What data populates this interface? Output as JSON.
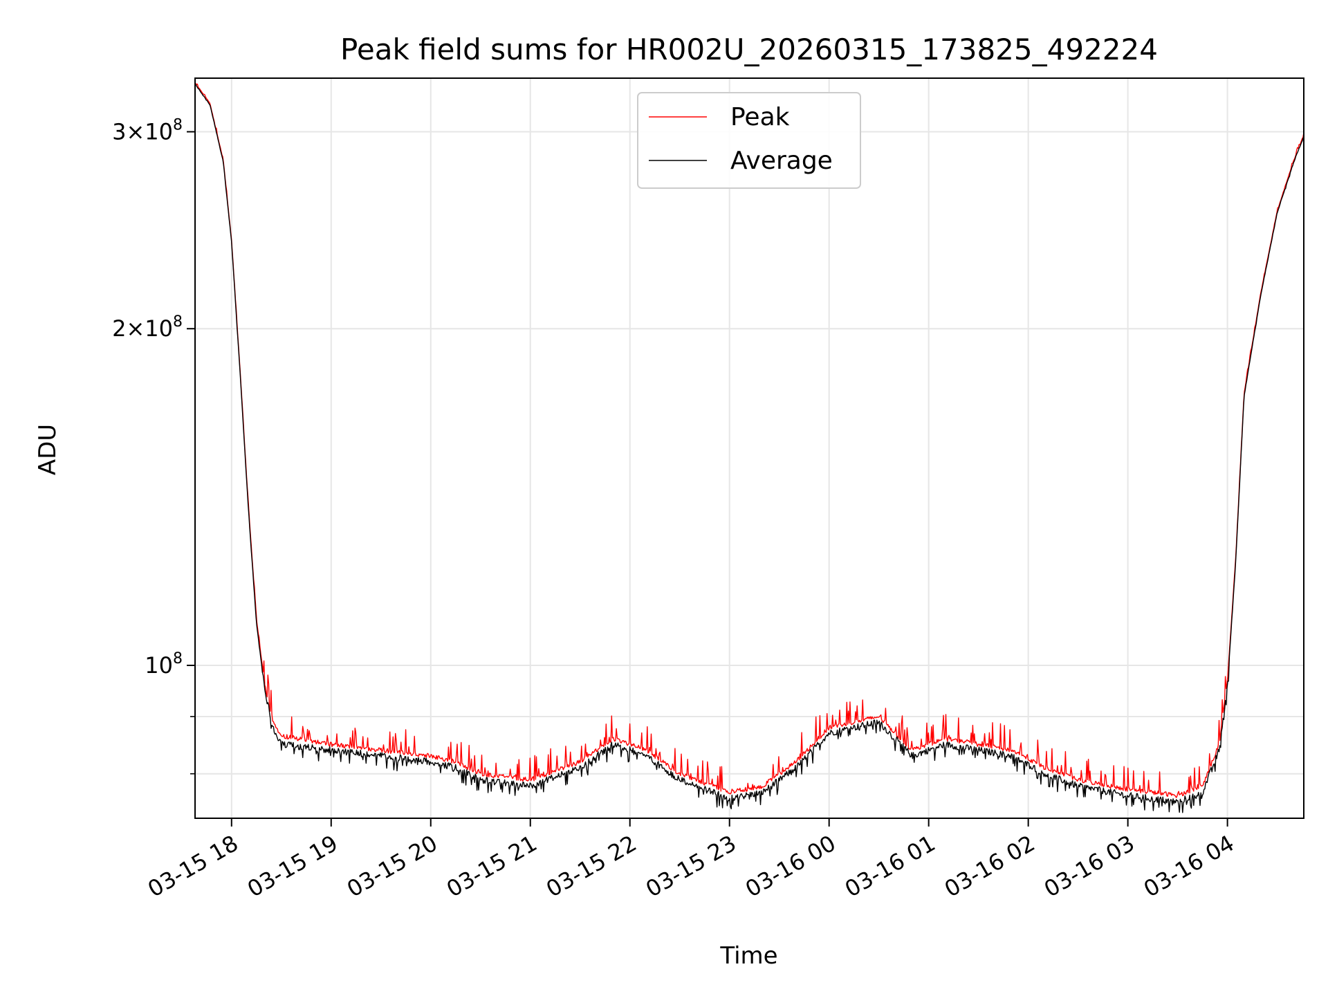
{
  "chart_data": {
    "type": "line",
    "title": "Peak field sums for HR002U_20260315_173825_492224",
    "xlabel": "Time",
    "ylabel": "ADU",
    "xlim": [
      "2026-03-15 17:38",
      "2026-03-16 04:46"
    ],
    "ylim": [
      73000000,
      335000000
    ],
    "yscale": "log",
    "grid": true,
    "legend_position": "top-center",
    "x_ticks": [
      "03-15 18",
      "03-15 19",
      "03-15 20",
      "03-15 21",
      "03-15 22",
      "03-15 23",
      "03-16 00",
      "03-16 01",
      "03-16 02",
      "03-16 03",
      "03-16 04"
    ],
    "y_ticks": [
      {
        "value": 100000000,
        "base": "10",
        "exp": "8",
        "coef": ""
      },
      {
        "value": 200000000,
        "base": "10",
        "exp": "8",
        "coef": "2"
      },
      {
        "value": 300000000,
        "base": "10",
        "exp": "8",
        "coef": "3"
      }
    ],
    "y_minor_ticks": [
      80000000,
      90000000
    ],
    "x": [
      "2026-03-15 17:38",
      "2026-03-15 17:47",
      "2026-03-15 17:55",
      "2026-03-15 18:00",
      "2026-03-15 18:05",
      "2026-03-15 18:10",
      "2026-03-15 18:15",
      "2026-03-15 18:20",
      "2026-03-15 18:25",
      "2026-03-15 18:30",
      "2026-03-15 19:00",
      "2026-03-15 19:30",
      "2026-03-15 20:00",
      "2026-03-15 20:15",
      "2026-03-15 20:30",
      "2026-03-15 21:00",
      "2026-03-15 21:30",
      "2026-03-15 21:50",
      "2026-03-15 22:10",
      "2026-03-15 22:30",
      "2026-03-15 23:00",
      "2026-03-15 23:20",
      "2026-03-15 23:40",
      "2026-03-16 00:00",
      "2026-03-16 00:30",
      "2026-03-16 00:50",
      "2026-03-16 01:10",
      "2026-03-16 01:30",
      "2026-03-16 01:50",
      "2026-03-16 02:10",
      "2026-03-16 02:30",
      "2026-03-16 03:00",
      "2026-03-16 03:30",
      "2026-03-16 03:45",
      "2026-03-16 03:55",
      "2026-03-16 04:00",
      "2026-03-16 04:05",
      "2026-03-16 04:10",
      "2026-03-16 04:20",
      "2026-03-16 04:30",
      "2026-03-16 04:40",
      "2026-03-16 04:46"
    ],
    "series": [
      {
        "name": "Peak",
        "color": "#ff0000",
        "values": [
          332000000,
          318000000,
          283000000,
          240000000,
          185000000,
          140000000,
          110000000,
          96000000,
          89000000,
          86500000,
          85000000,
          84000000,
          83000000,
          82000000,
          80000000,
          79000000,
          82000000,
          86000000,
          84000000,
          80000000,
          77000000,
          78000000,
          82000000,
          88000000,
          90000000,
          84000000,
          86000000,
          85000000,
          84000000,
          81000000,
          79000000,
          77500000,
          76500000,
          78000000,
          85000000,
          97000000,
          125000000,
          175000000,
          215000000,
          255000000,
          283000000,
          298000000
        ]
      },
      {
        "name": "Average",
        "color": "#000000",
        "values": [
          331000000,
          317000000,
          282000000,
          239000000,
          184000000,
          139000000,
          109000000,
          95000000,
          88000000,
          85000000,
          84000000,
          83000000,
          82000000,
          81000000,
          79000000,
          78000000,
          81000000,
          85000000,
          83000000,
          79000000,
          76000000,
          77000000,
          81000000,
          87000000,
          89000000,
          83000000,
          85000000,
          84000000,
          83000000,
          80000000,
          78000000,
          76500000,
          75500000,
          77000000,
          84000000,
          96000000,
          124000000,
          174000000,
          214000000,
          254000000,
          282000000,
          297000000
        ]
      }
    ]
  }
}
